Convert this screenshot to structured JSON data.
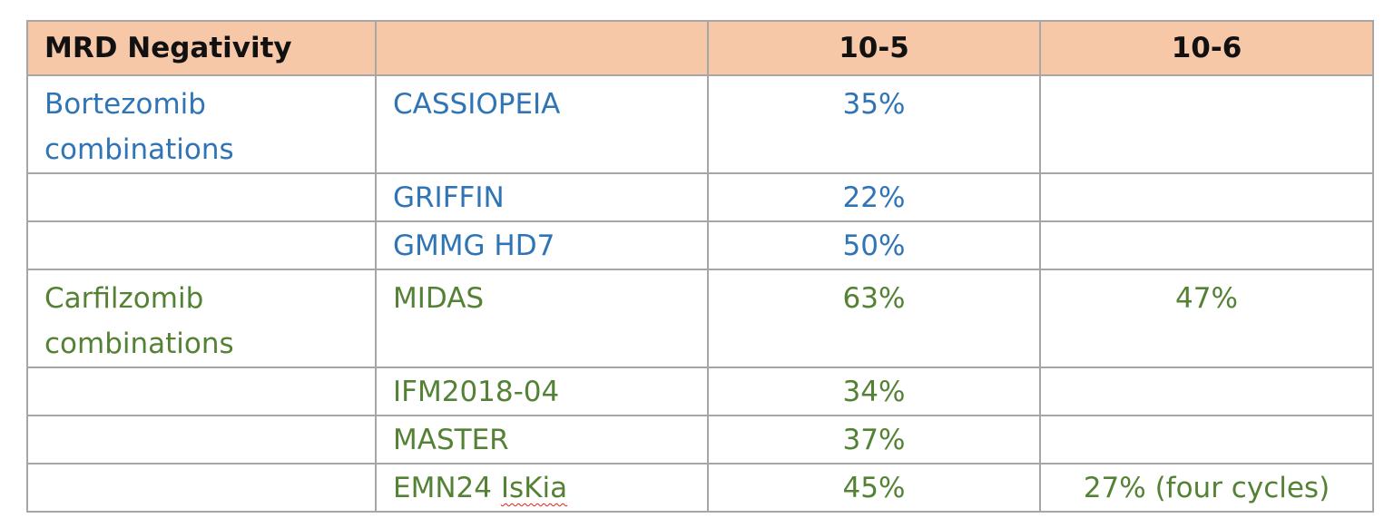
{
  "table": {
    "headers": [
      "MRD Negativity",
      "",
      "10-5",
      "10-6"
    ],
    "colors": {
      "header_bg": "#f7c8a8",
      "bortezomib": "#2f74b5",
      "carfilzomib": "#548235",
      "border": "#a6a6a6"
    },
    "rows": [
      {
        "group": "Bortezomib combinations",
        "trial": "CASSIOPEIA",
        "mrd_10_5": "35%",
        "mrd_10_6": "",
        "color": "blue"
      },
      {
        "group": "",
        "trial": "GRIFFIN",
        "mrd_10_5": "22%",
        "mrd_10_6": "",
        "color": "blue"
      },
      {
        "group": "",
        "trial": "GMMG HD7",
        "mrd_10_5": "50%",
        "mrd_10_6": "",
        "color": "blue"
      },
      {
        "group": "Carfilzomib combinations",
        "trial": "MIDAS",
        "mrd_10_5": "63%",
        "mrd_10_6": "47%",
        "color": "green"
      },
      {
        "group": "",
        "trial": "IFM2018-04",
        "mrd_10_5": "34%",
        "mrd_10_6": "",
        "color": "green"
      },
      {
        "group": "",
        "trial": "MASTER",
        "mrd_10_5": "37%",
        "mrd_10_6": "",
        "color": "green"
      },
      {
        "group": "",
        "trial": "EMN24 IsKia",
        "trial_prefix": "EMN24 ",
        "trial_flagged_word": "IsKia",
        "mrd_10_5": "45%",
        "mrd_10_6": "27% (four cycles)",
        "color": "green"
      }
    ]
  }
}
